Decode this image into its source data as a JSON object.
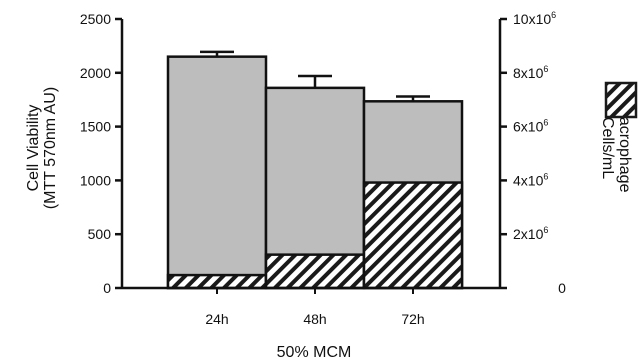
{
  "chart_data": {
    "type": "bar",
    "xlabel": "50% MCM",
    "ylabel_line1": "Cell Viability",
    "ylabel_line2": "(MTT 570nm AU)",
    "y2label_line1": "Macrophage",
    "y2label_line2": "Cells/mL",
    "categories": [
      "24h",
      "48h",
      "72h"
    ],
    "ylim": [
      0,
      2500
    ],
    "yticks": [
      "0",
      "500",
      "1000",
      "1500",
      "2000",
      "2500"
    ],
    "y2lim": [
      0,
      10000000
    ],
    "y2ticks": [
      {
        "base": "0",
        "exp": ""
      },
      {
        "base": "2x10",
        "exp": "6"
      },
      {
        "base": "4x10",
        "exp": "6"
      },
      {
        "base": "6x10",
        "exp": "6"
      },
      {
        "base": "8x10",
        "exp": "6"
      },
      {
        "base": "10x10",
        "exp": "6"
      }
    ],
    "series": [
      {
        "name": "",
        "axis": "left",
        "style": "solid",
        "color": "#bdbdbd",
        "values": [
          2150,
          1860,
          1735
        ],
        "errors": [
          45,
          110,
          45
        ]
      },
      {
        "name": "",
        "axis": "right",
        "style": "hatched",
        "color": "#1a1a1a",
        "values": [
          480000,
          1240000,
          3920000
        ]
      }
    ]
  }
}
